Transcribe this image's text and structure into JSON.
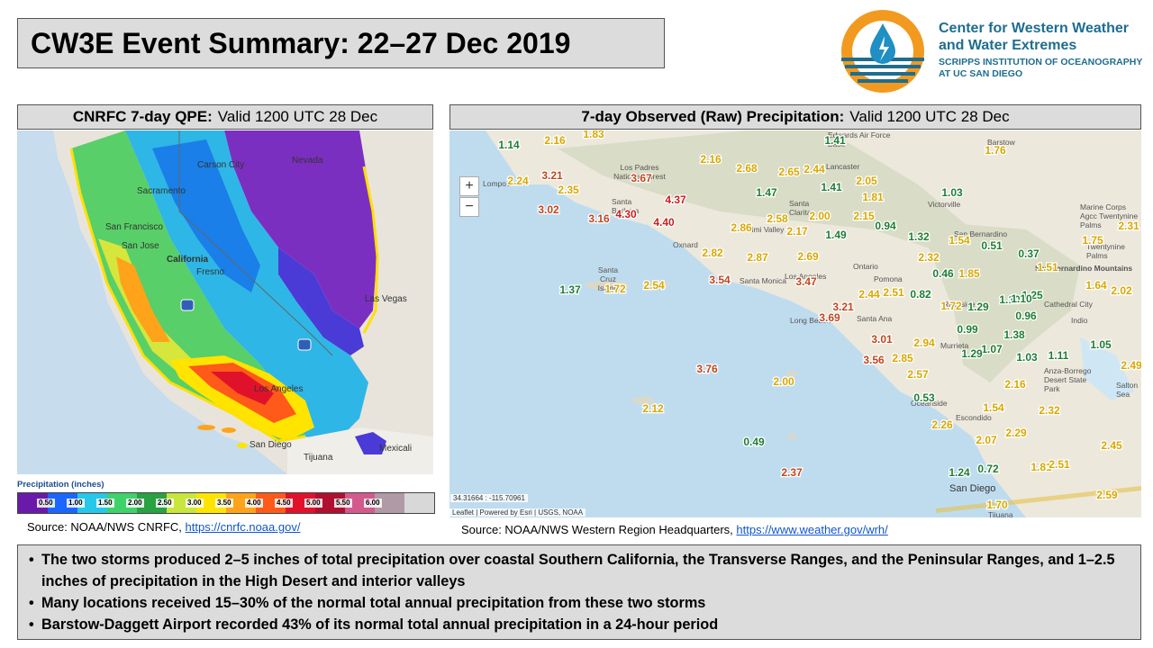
{
  "title": "CW3E Event Summary: 22–27 Dec 2019",
  "logo": {
    "line1": "Center for Western Weather",
    "line2": "and Water Extremes",
    "line3": "SCRIPPS INSTITUTION OF OCEANOGRAPHY",
    "line4": "AT UC SAN DIEGO",
    "brand_orange": "#f29a1f",
    "brand_blue": "#1f6d8e"
  },
  "left_panel": {
    "header_bold": "CNRFC 7-day QPE:",
    "header_rest": "Valid 1200 UTC 28 Dec",
    "source_prefix": "Source: NOAA/NWS CNRFC,",
    "source_link": "https://cnrfc.noaa.gov/",
    "places": [
      "Carson City",
      "Nevada",
      "Sacramento",
      "San Francisco",
      "San Jose",
      "California",
      "Fresno",
      "Las Vegas",
      "Los Angeles",
      "San Diego",
      "Tijuana",
      "Mexicali"
    ],
    "legend_title": "Precipitation (inches)",
    "legend_ticks": [
      "0.50",
      "1.00",
      "1.50",
      "2.00",
      "2.50",
      "3.00",
      "3.50",
      "4.00",
      "4.50",
      "5.00",
      "5.50",
      "6.00"
    ],
    "legend_colors": [
      "#6a1aa8",
      "#1a66ff",
      "#27c7ea",
      "#3fd26b",
      "#2aa142",
      "#c8e63c",
      "#ffe400",
      "#ffa31a",
      "#ff5a1a",
      "#e0122b",
      "#b01030",
      "#d35a8d",
      "#b09aa6",
      "#d8d8d8"
    ]
  },
  "right_panel": {
    "header_bold": "7-day Observed (Raw) Precipitation:",
    "header_rest": "Valid 1200 UTC 28 Dec",
    "source_prefix": "Source: NOAA/NWS Western Region Headquarters,",
    "source_link": "https://www.weather.gov/wrh/",
    "zoom_in": "+",
    "zoom_out": "−",
    "coords": "34.31664 : -115.70961",
    "attribution": "Leaflet | Powered by Esri | USGS, NOAA",
    "places": [
      "Barstow",
      "Lancaster",
      "Victorville",
      "Los Padres National Forest",
      "Santa Clarita",
      "Oxnard",
      "Simi Valley",
      "Los Angeles",
      "Ontario",
      "Pomona",
      "Riverside",
      "San Bernardino",
      "Long Beach",
      "Santa Ana",
      "Murrieta",
      "Escondido",
      "Oceanside",
      "San Diego",
      "Tijuana",
      "Twentynine Palms",
      "Indio",
      "Salton Sea",
      "Santa Cruz Island",
      "Santa Monica",
      "Cathedral City",
      "Anza-Borrego Desert State Park",
      "Marine Corps Agcc Twentynine Palms",
      "Edwards Air Force Base",
      "Lompoc",
      "Santa Barbara",
      "San Bernardino Mountains"
    ],
    "stations": [
      {
        "v": "1.14",
        "c": "#1e7d32"
      },
      {
        "v": "2.16",
        "c": "#d8a800"
      },
      {
        "v": "1.83",
        "c": "#d8a800"
      },
      {
        "v": "1.41",
        "c": "#1e7d32"
      },
      {
        "v": "1.76",
        "c": "#d8a800"
      },
      {
        "v": "2.16",
        "c": "#d8a800"
      },
      {
        "v": "2.68",
        "c": "#d8a800"
      },
      {
        "v": "2.65",
        "c": "#d8a800"
      },
      {
        "v": "2.44",
        "c": "#d8a800"
      },
      {
        "v": "3.21",
        "c": "#c0461e"
      },
      {
        "v": "2.24",
        "c": "#d8a800"
      },
      {
        "v": "2.35",
        "c": "#d8a800"
      },
      {
        "v": "3.67",
        "c": "#c0461e"
      },
      {
        "v": "1.41",
        "c": "#1e7d32"
      },
      {
        "v": "2.05",
        "c": "#d8a800"
      },
      {
        "v": "1.47",
        "c": "#1e7d32"
      },
      {
        "v": "1.81",
        "c": "#d8a800"
      },
      {
        "v": "1.03",
        "c": "#1e7d32"
      },
      {
        "v": "4.37",
        "c": "#c81e1e"
      },
      {
        "v": "3.02",
        "c": "#c0461e"
      },
      {
        "v": "3.16",
        "c": "#c0461e"
      },
      {
        "v": "4.30",
        "c": "#c81e1e"
      },
      {
        "v": "4.40",
        "c": "#c81e1e"
      },
      {
        "v": "2.00",
        "c": "#d8a800"
      },
      {
        "v": "2.15",
        "c": "#d8a800"
      },
      {
        "v": "2.31",
        "c": "#d8a800"
      },
      {
        "v": "2.86",
        "c": "#d8a800"
      },
      {
        "v": "2.58",
        "c": "#d8a800"
      },
      {
        "v": "2.17",
        "c": "#d8a800"
      },
      {
        "v": "1.49",
        "c": "#1e7d32"
      },
      {
        "v": "0.94",
        "c": "#1e7d32"
      },
      {
        "v": "1.32",
        "c": "#1e7d32"
      },
      {
        "v": "1.54",
        "c": "#d8a800"
      },
      {
        "v": "0.51",
        "c": "#1e7d32"
      },
      {
        "v": "0.37",
        "c": "#1e7d32"
      },
      {
        "v": "1.75",
        "c": "#d8a800"
      },
      {
        "v": "2.82",
        "c": "#d8a800"
      },
      {
        "v": "2.87",
        "c": "#d8a800"
      },
      {
        "v": "2.69",
        "c": "#d8a800"
      },
      {
        "v": "2.32",
        "c": "#d8a800"
      },
      {
        "v": "1.51",
        "c": "#d8a800"
      },
      {
        "v": "0.46",
        "c": "#1e7d32"
      },
      {
        "v": "1.85",
        "c": "#d8a800"
      },
      {
        "v": "1.37",
        "c": "#1e7d32"
      },
      {
        "v": "1.72",
        "c": "#d8a800"
      },
      {
        "v": "2.54",
        "c": "#d8a800"
      },
      {
        "v": "3.54",
        "c": "#c0461e"
      },
      {
        "v": "3.47",
        "c": "#c0461e"
      },
      {
        "v": "2.44",
        "c": "#d8a800"
      },
      {
        "v": "2.51",
        "c": "#d8a800"
      },
      {
        "v": "0.82",
        "c": "#1e7d32"
      },
      {
        "v": "1.72",
        "c": "#d8a800"
      },
      {
        "v": "1.10",
        "c": "#1e7d32"
      },
      {
        "v": "1.25",
        "c": "#1e7d32"
      },
      {
        "v": "1.64",
        "c": "#d8a800"
      },
      {
        "v": "2.02",
        "c": "#d8a800"
      },
      {
        "v": "3.21",
        "c": "#c0461e"
      },
      {
        "v": "3.69",
        "c": "#c0461e"
      },
      {
        "v": "1.29",
        "c": "#1e7d32"
      },
      {
        "v": "0.96",
        "c": "#1e7d32"
      },
      {
        "v": "0.99",
        "c": "#1e7d32"
      },
      {
        "v": "1.38",
        "c": "#1e7d32"
      },
      {
        "v": "3.01",
        "c": "#c0461e"
      },
      {
        "v": "2.94",
        "c": "#d8a800"
      },
      {
        "v": "1.07",
        "c": "#1e7d32"
      },
      {
        "v": "1.05",
        "c": "#1e7d32"
      },
      {
        "v": "1.29",
        "c": "#1e7d32"
      },
      {
        "v": "1.03",
        "c": "#1e7d32"
      },
      {
        "v": "1.11",
        "c": "#1e7d32"
      },
      {
        "v": "3.56",
        "c": "#c0461e"
      },
      {
        "v": "2.85",
        "c": "#d8a800"
      },
      {
        "v": "1.10",
        "c": "#1e7d32"
      },
      {
        "v": "2.49",
        "c": "#d8a800"
      },
      {
        "v": "3.76",
        "c": "#c0461e"
      },
      {
        "v": "2.57",
        "c": "#d8a800"
      },
      {
        "v": "2.00",
        "c": "#d8a800"
      },
      {
        "v": "2.16",
        "c": "#d8a800"
      },
      {
        "v": "0.53",
        "c": "#1e7d32"
      },
      {
        "v": "2.12",
        "c": "#d8a800"
      },
      {
        "v": "1.54",
        "c": "#d8a800"
      },
      {
        "v": "2.32",
        "c": "#d8a800"
      },
      {
        "v": "2.26",
        "c": "#d8a800"
      },
      {
        "v": "2.07",
        "c": "#d8a800"
      },
      {
        "v": "2.29",
        "c": "#d8a800"
      },
      {
        "v": "0.49",
        "c": "#1e7d32"
      },
      {
        "v": "2.45",
        "c": "#d8a800"
      },
      {
        "v": "1.81",
        "c": "#d8a800"
      },
      {
        "v": "2.51",
        "c": "#d8a800"
      },
      {
        "v": "2.37",
        "c": "#c0461e"
      },
      {
        "v": "1.24",
        "c": "#1e7d32"
      },
      {
        "v": "0.72",
        "c": "#1e7d32"
      },
      {
        "v": "2.59",
        "c": "#d8a800"
      },
      {
        "v": "1.70",
        "c": "#d8a800"
      }
    ]
  },
  "summary": {
    "bullets": [
      "The two storms produced 2–5 inches of total precipitation over coastal Southern California, the Transverse Ranges, and the Peninsular Ranges, and 1–2.5 inches of precipitation in the High Desert and interior valleys",
      "Many locations received 15–30% of the normal total annual precipitation from these two storms",
      "Barstow-Daggett Airport recorded 43% of its normal total annual precipitation in a 24-hour period"
    ]
  }
}
